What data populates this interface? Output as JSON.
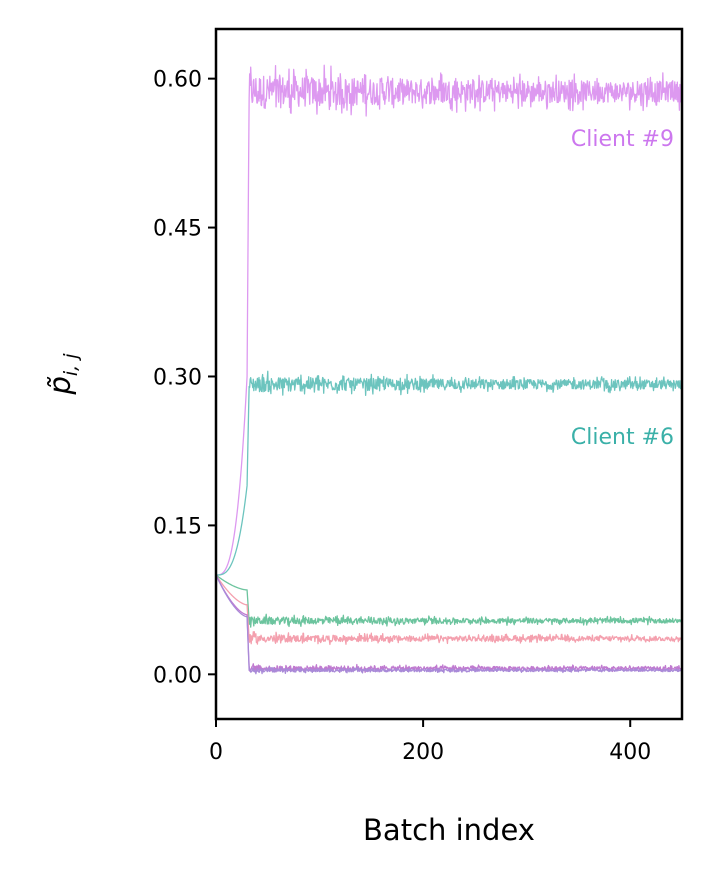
{
  "chart_data": {
    "type": "line",
    "xlabel": "Batch index",
    "ylabel": "p̃",
    "ylabel_subscript": "i, j",
    "xlim": [
      0,
      450
    ],
    "ylim": [
      -0.045,
      0.65
    ],
    "xticks": [
      0,
      200,
      400
    ],
    "xtick_labels": [
      "0",
      "200",
      "400"
    ],
    "yticks": [
      0.0,
      0.15,
      0.3,
      0.45,
      0.6
    ],
    "ytick_labels": [
      "0.00",
      "0.15",
      "0.30",
      "0.45",
      "0.60"
    ],
    "grid": false,
    "legend": "none",
    "x_end": 450,
    "series": [
      {
        "color": "#dd99f0",
        "start": 0.1,
        "level": 0.587,
        "jump_at": 30,
        "pre_value": 0.3,
        "noise": 0.018,
        "label": "Client #9",
        "label_color": "#cc77ee",
        "label_y": 0.54
      },
      {
        "color": "#6cc4be",
        "start": 0.1,
        "level": 0.292,
        "jump_at": 30,
        "pre_value": 0.19,
        "noise": 0.008,
        "label": "Client #6",
        "label_color": "#3ab0a8",
        "label_y": 0.24
      },
      {
        "color": "#6cc49e",
        "start": 0.1,
        "level": 0.054,
        "jump_at": 30,
        "pre_value": 0.085,
        "noise": 0.004
      },
      {
        "color": "#f4a0ae",
        "start": 0.1,
        "level": 0.036,
        "jump_at": 30,
        "pre_value": 0.07,
        "noise": 0.004
      },
      {
        "color": "#c07ad0",
        "start": 0.1,
        "level": 0.006,
        "jump_at": 30,
        "pre_value": 0.06,
        "noise": 0.003
      },
      {
        "color": "#a98ad8",
        "start": 0.1,
        "level": 0.004,
        "jump_at": 30,
        "pre_value": 0.058,
        "noise": 0.002
      }
    ]
  }
}
